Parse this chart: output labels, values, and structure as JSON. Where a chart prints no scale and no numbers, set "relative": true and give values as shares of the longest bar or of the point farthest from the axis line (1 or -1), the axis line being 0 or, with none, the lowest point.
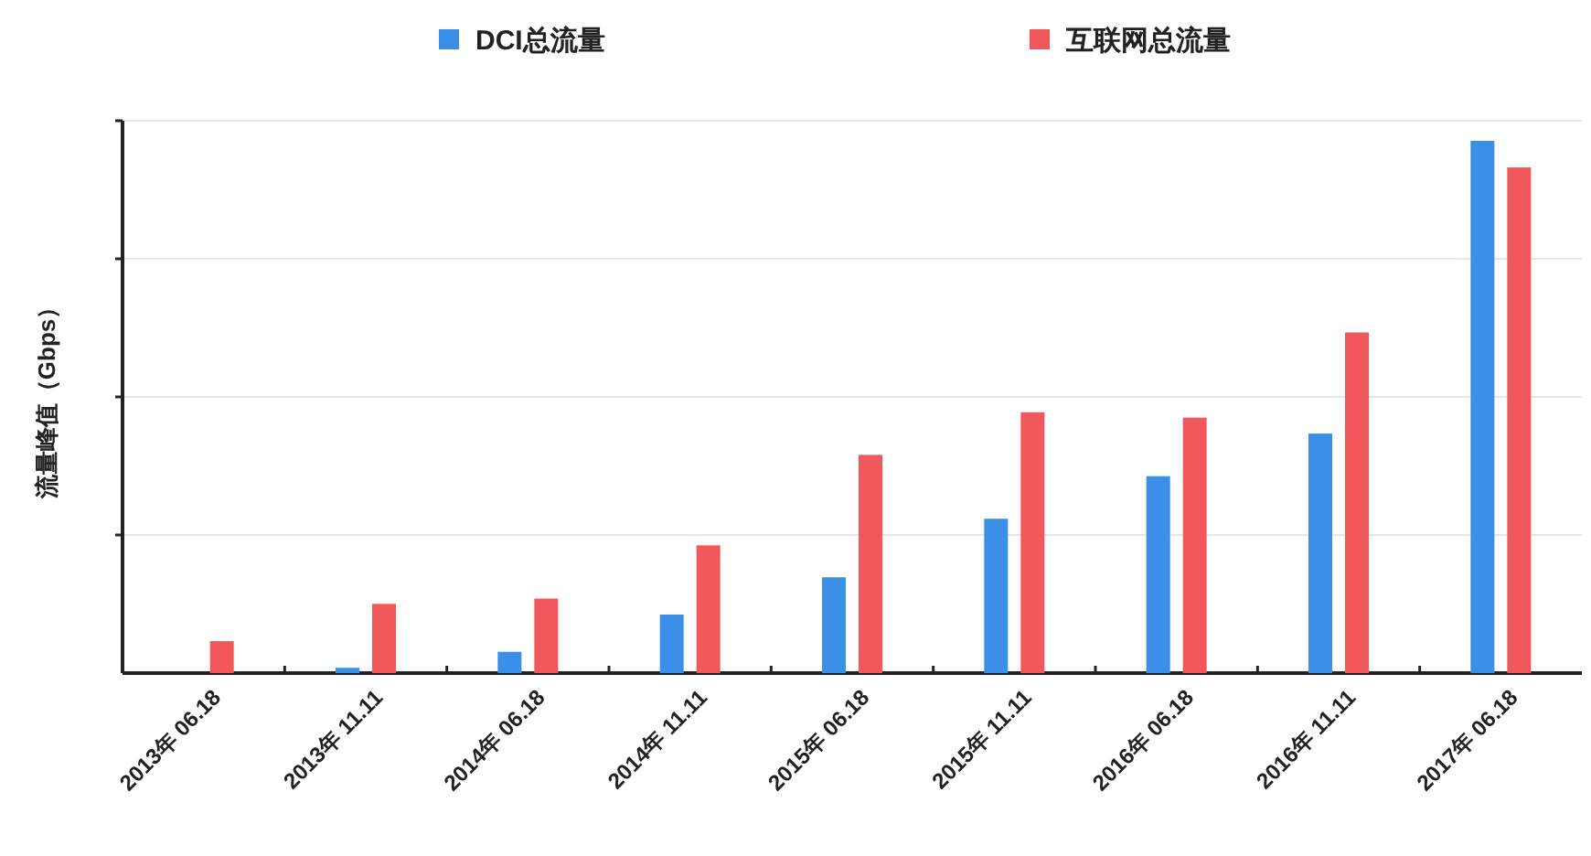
{
  "chart_data": {
    "type": "bar",
    "ylabel": "流量峰值（Gbps）",
    "relative": true,
    "grid": "y",
    "legend": "top",
    "categories": [
      "2013年 06.18",
      "2013年 11.11",
      "2014年 06.18",
      "2014年 11.11",
      "2015年 06.18",
      "2015年 11.11",
      "2016年 06.18",
      "2016年 11.11",
      "2017年 06.18"
    ],
    "series": [
      {
        "name": "DCI总流量",
        "color": "#3b8fe6",
        "values": [
          0,
          0.01,
          0.04,
          0.11,
          0.18,
          0.29,
          0.37,
          0.45,
          1
        ]
      },
      {
        "name": "互联网总流量",
        "color": "#f0585c",
        "values": [
          0.06,
          0.13,
          0.14,
          0.24,
          0.41,
          0.49,
          0.48,
          0.64,
          0.95
        ]
      }
    ]
  }
}
